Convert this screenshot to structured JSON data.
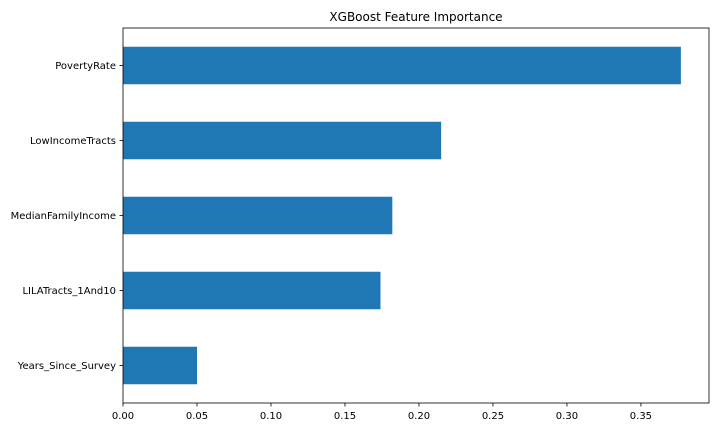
{
  "chart_data": {
    "type": "bar",
    "orientation": "horizontal",
    "title": "XGBoost Feature Importance",
    "xlabel": "",
    "ylabel": "",
    "categories": [
      "PovertyRate",
      "LowIncomeTracts",
      "MedianFamilyIncome",
      "LILATracts_1And10",
      "Years_Since_Survey"
    ],
    "values": [
      0.377,
      0.215,
      0.182,
      0.174,
      0.05
    ],
    "xlim": [
      0.0,
      0.396
    ],
    "xticks": [
      0.0,
      0.05,
      0.1,
      0.15,
      0.2,
      0.25,
      0.3,
      0.35
    ],
    "xtick_labels": [
      "0.00",
      "0.05",
      "0.10",
      "0.15",
      "0.20",
      "0.25",
      "0.30",
      "0.35"
    ],
    "grid": false,
    "legend": "none",
    "colors": {
      "bar": "#1f77b4",
      "axis": "#000000",
      "background": "#ffffff"
    }
  }
}
